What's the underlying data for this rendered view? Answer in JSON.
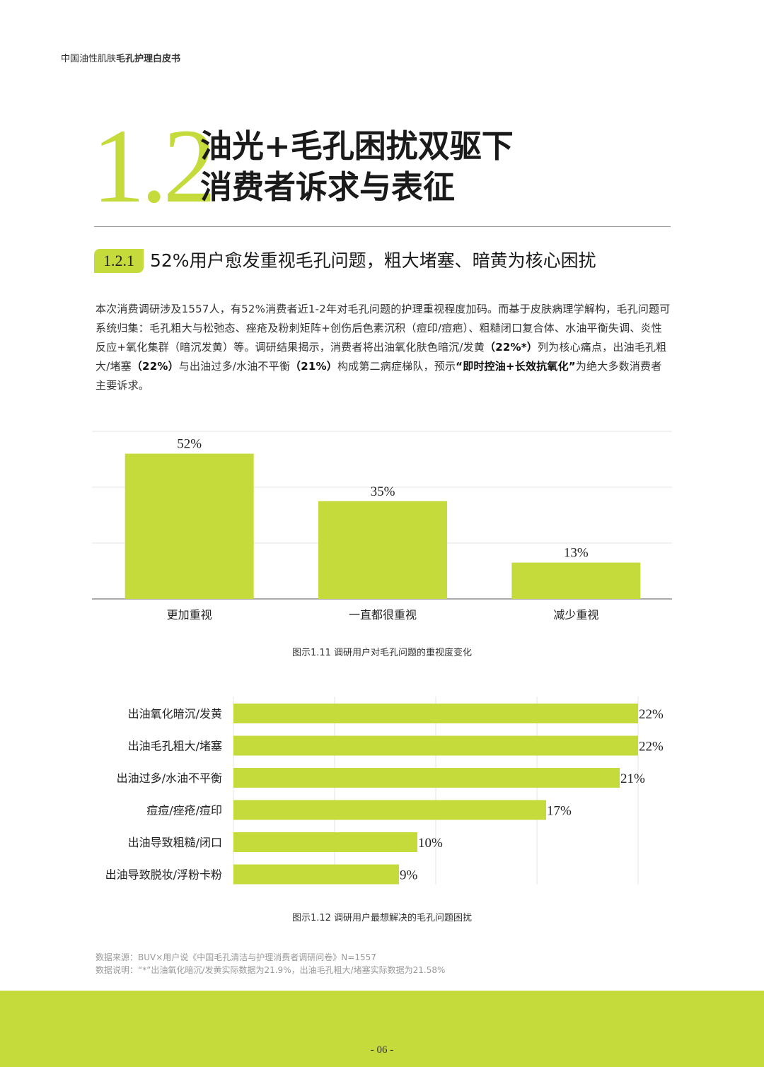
{
  "header": {
    "prefix": "中国油性肌肤",
    "bold": "毛孔护理白皮书"
  },
  "section": {
    "number": "1.2",
    "title_line1": "油光+毛孔困扰双驱下",
    "title_line2": "消费者诉求与表征"
  },
  "subsection": {
    "number": "1.2.1",
    "title": "52%用户愈发重视毛孔问题，粗大堵塞、暗黄为核心困扰"
  },
  "paragraph": {
    "part1": "本次消费调研涉及1557人，有52%消费者近1-2年对毛孔问题的护理重视程度加码。而基于皮肤病理学解构，毛孔问题可系统归集：毛孔粗大与松弛态、痤疮及粉刺矩阵+创伤后色素沉积（痘印/痘疤）、粗糙闭口复合体、水油平衡失调、炎性反应+氧化集群（暗沉发黄）等。调研结果揭示，消费者将出油氧化肤色暗沉/发黄",
    "bold1": "（22%*）",
    "part2": "列为核心痛点，出油毛孔粗大/堵塞",
    "bold2": "（22%）",
    "part3": "与出油过多/水油不平衡",
    "bold3": "（21%）",
    "part4": "构成第二病症梯队，预示",
    "bold4": "“即时控油+长效抗氧化”",
    "part5": "为绝大多数消费者主要诉求。"
  },
  "chart_data": [
    {
      "type": "bar",
      "categories": [
        "更加重视",
        "一直都很重视",
        "减少重视"
      ],
      "values": [
        52,
        35,
        13
      ],
      "value_labels": [
        "52%",
        "35%",
        "13%"
      ],
      "ylim": [
        0,
        60
      ],
      "grid": true,
      "color": "#c5db3c",
      "caption": "图示1.11 调研用户对毛孔问题的重视度变化"
    },
    {
      "type": "bar",
      "orientation": "horizontal",
      "categories": [
        "出油氧化暗沉/发黄",
        "出油毛孔粗大/堵塞",
        "出油过多/水油不平衡",
        "痘痘/痤疮/痘印",
        "出油导致粗糙/闭口",
        "出油导致脱妆/浮粉卡粉"
      ],
      "values": [
        22,
        22,
        21,
        17,
        10,
        9
      ],
      "value_labels": [
        "22%",
        "22%",
        "21%",
        "17%",
        "10%",
        "9%"
      ],
      "xlim": [
        0,
        22
      ],
      "grid": true,
      "color": "#c5db3c",
      "caption": "图示1.12 调研用户最想解决的毛孔问题困扰"
    }
  ],
  "notes": {
    "source": "数据来源：BUV×用户说《中国毛孔清洁与护理消费者调研问卷》N=1557",
    "explain": "数据说明：“*”出油氧化暗沉/发黄实际数据为21.9%，出油毛孔粗大/堵塞实际数据为21.58%"
  },
  "footer": {
    "page": "- 06 -"
  },
  "colors": {
    "accent": "#c5db3c"
  }
}
